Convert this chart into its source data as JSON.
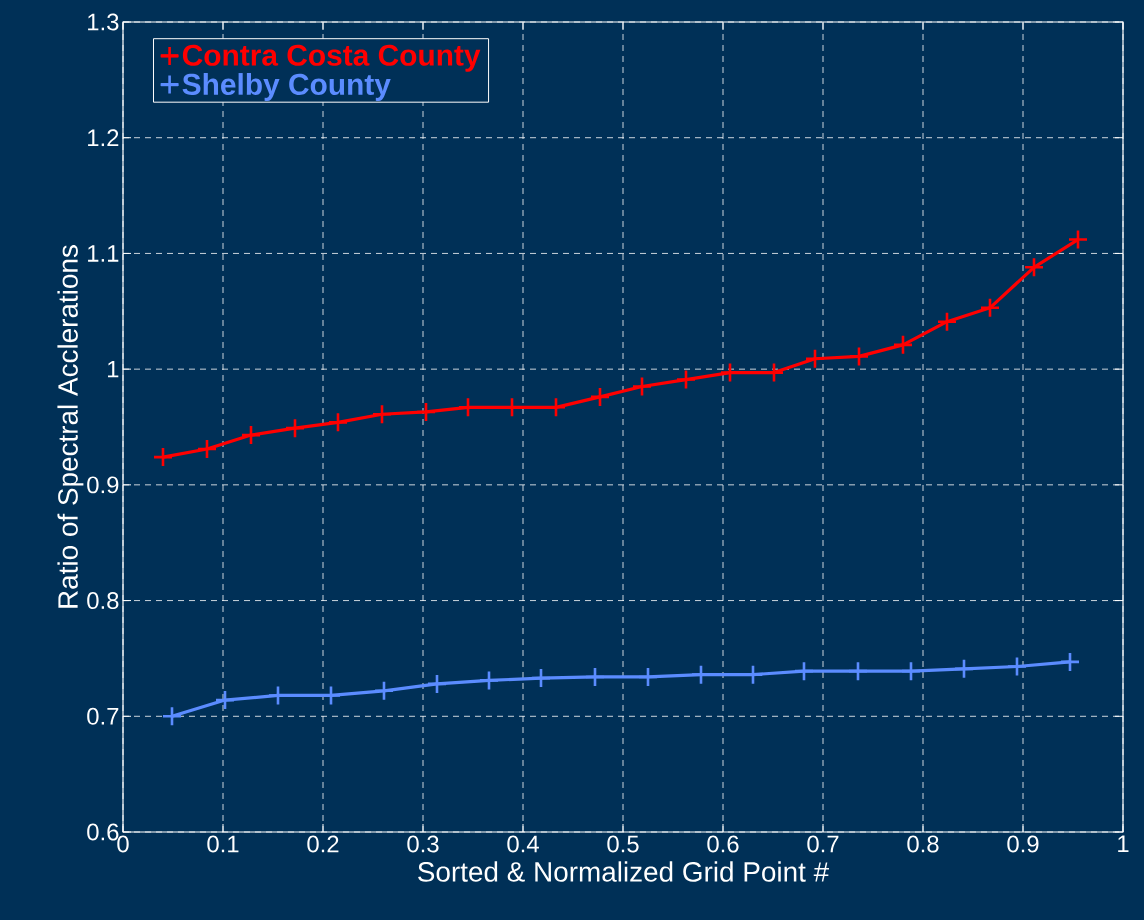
{
  "chart_data": {
    "type": "line",
    "xlabel": "Sorted & Normalized Grid Point #",
    "ylabel": "Ratio of Spectral Acclerations",
    "xlim": [
      0,
      1
    ],
    "ylim": [
      0.6,
      1.3
    ],
    "xticks": [
      0,
      0.1,
      0.2,
      0.3,
      0.4,
      0.5,
      0.6,
      0.7,
      0.8,
      0.9,
      1
    ],
    "yticks": [
      0.6,
      0.7,
      0.8,
      0.9,
      1,
      1.1,
      1.2,
      1.3
    ],
    "grid": true,
    "legend": "top left",
    "marker": "cross",
    "line_style": "solid",
    "series": [
      {
        "name": "Contra Costa County",
        "color": "#ff0000",
        "x": [
          0.04,
          0.084,
          0.128,
          0.172,
          0.215,
          0.259,
          0.303,
          0.345,
          0.389,
          0.433,
          0.477,
          0.519,
          0.563,
          0.607,
          0.651,
          0.692,
          0.736,
          0.78,
          0.824,
          0.867,
          0.911,
          0.955
        ],
        "values": [
          0.924,
          0.931,
          0.943,
          0.949,
          0.954,
          0.961,
          0.963,
          0.967,
          0.967,
          0.967,
          0.976,
          0.985,
          0.991,
          0.997,
          0.997,
          1.009,
          1.011,
          1.021,
          1.041,
          1.053,
          1.088,
          1.112
        ]
      },
      {
        "name": "Shelby County",
        "color": "#5b8cff",
        "x": [
          0.049,
          0.102,
          0.155,
          0.208,
          0.261,
          0.314,
          0.366,
          0.418,
          0.472,
          0.525,
          0.578,
          0.63,
          0.681,
          0.735,
          0.788,
          0.841,
          0.894,
          0.947
        ],
        "values": [
          0.7,
          0.714,
          0.718,
          0.718,
          0.722,
          0.728,
          0.731,
          0.733,
          0.734,
          0.734,
          0.736,
          0.736,
          0.739,
          0.739,
          0.739,
          0.741,
          0.743,
          0.747
        ]
      }
    ]
  }
}
